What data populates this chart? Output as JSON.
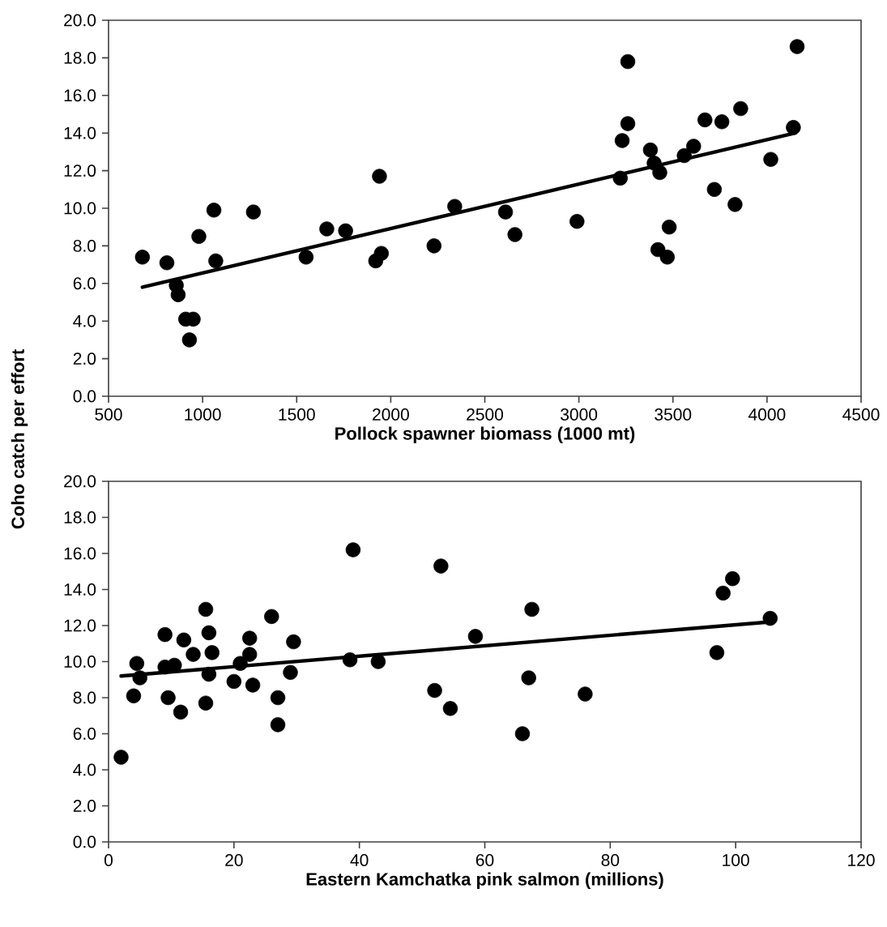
{
  "chart_data": [
    {
      "type": "scatter",
      "xlabel": "Pollock spawner biomass (1000 mt)",
      "ylabel": "Coho catch per effort",
      "marker": "circle",
      "xlim": [
        500,
        4500
      ],
      "xticks": [
        500,
        1000,
        1500,
        2000,
        2500,
        3000,
        3500,
        4000,
        4500
      ],
      "ylim": [
        0,
        20
      ],
      "yticks": [
        {
          "value": 0,
          "label": "0.0"
        },
        {
          "value": 2,
          "label": "2.0"
        },
        {
          "value": 4,
          "label": "4.0"
        },
        {
          "value": 6,
          "label": "6.0"
        },
        {
          "value": 8,
          "label": "8.0"
        },
        {
          "value": 10,
          "label": "10.0"
        },
        {
          "value": 12,
          "label": "12.0"
        },
        {
          "value": 14,
          "label": "14.0"
        },
        {
          "value": 16,
          "label": "16.0"
        },
        {
          "value": 18,
          "label": "18.0"
        },
        {
          "value": 20,
          "label": "20.0"
        }
      ],
      "series": [
        {
          "color": "#000000",
          "x": [
            680,
            810,
            860,
            870,
            910,
            950,
            930,
            980,
            1060,
            1070,
            1270,
            1550,
            1660,
            1760,
            1920,
            1950,
            1940,
            2230,
            2340,
            2610,
            2660,
            2990,
            3220,
            3230,
            3260,
            3260,
            3380,
            3400,
            3420,
            3430,
            3470,
            3480,
            3560,
            3610,
            3670,
            3720,
            3760,
            3830,
            3860,
            4020,
            4140,
            4160
          ],
          "values": [
            7.4,
            7.1,
            5.9,
            5.4,
            4.1,
            4.1,
            3.0,
            8.5,
            9.9,
            7.2,
            9.8,
            7.4,
            8.9,
            8.8,
            7.2,
            7.6,
            11.7,
            8.0,
            10.1,
            9.8,
            8.6,
            9.3,
            11.6,
            13.6,
            14.5,
            17.8,
            13.1,
            12.4,
            7.8,
            11.9,
            7.4,
            9.0,
            12.8,
            13.3,
            14.7,
            11.0,
            14.6,
            10.2,
            15.3,
            12.6,
            14.3,
            18.6
          ]
        },
        {
          "type": "line",
          "marker": "none",
          "color": "#000000",
          "x": [
            680,
            4150
          ],
          "values": [
            5.8,
            14.0
          ]
        }
      ]
    },
    {
      "type": "scatter",
      "xlabel": "Eastern Kamchatka pink salmon (millions)",
      "marker": "circle",
      "xlim": [
        0,
        120
      ],
      "xticks": [
        0,
        20,
        40,
        60,
        80,
        100,
        120
      ],
      "ylim": [
        0,
        20
      ],
      "yticks": [
        {
          "value": 0,
          "label": "0.0"
        },
        {
          "value": 2,
          "label": "2.0"
        },
        {
          "value": 4,
          "label": "4.0"
        },
        {
          "value": 6,
          "label": "6.0"
        },
        {
          "value": 8,
          "label": "8.0"
        },
        {
          "value": 10,
          "label": "10.0"
        },
        {
          "value": 12,
          "label": "12.0"
        },
        {
          "value": 14,
          "label": "14.0"
        },
        {
          "value": 16,
          "label": "16.0"
        },
        {
          "value": 18,
          "label": "18.0"
        },
        {
          "value": 20,
          "label": "20.0"
        }
      ],
      "series": [
        {
          "color": "#000000",
          "x": [
            2,
            4,
            4.5,
            5,
            9,
            9,
            9.5,
            10.5,
            11.5,
            12,
            13.5,
            15.5,
            16,
            15.5,
            16,
            16.5,
            20,
            21,
            22.5,
            22.5,
            23,
            26,
            27,
            27,
            29,
            29.5,
            38.5,
            39,
            43,
            52,
            53,
            54.5,
            58.5,
            66,
            67,
            67.5,
            76,
            97,
            98,
            99.5,
            105.5
          ],
          "values": [
            4.7,
            8.1,
            9.9,
            9.1,
            11.5,
            9.7,
            8.0,
            9.8,
            7.2,
            11.2,
            10.4,
            12.9,
            11.6,
            7.7,
            9.3,
            10.5,
            8.9,
            9.9,
            11.3,
            10.4,
            8.7,
            12.5,
            8.0,
            6.5,
            9.4,
            11.1,
            10.1,
            16.2,
            10.0,
            8.4,
            15.3,
            7.4,
            11.4,
            6.0,
            9.1,
            12.9,
            8.2,
            10.5,
            13.8,
            14.6,
            12.4
          ]
        },
        {
          "type": "line",
          "marker": "none",
          "color": "#000000",
          "x": [
            2,
            105.5
          ],
          "values": [
            9.2,
            12.2
          ]
        }
      ]
    }
  ]
}
